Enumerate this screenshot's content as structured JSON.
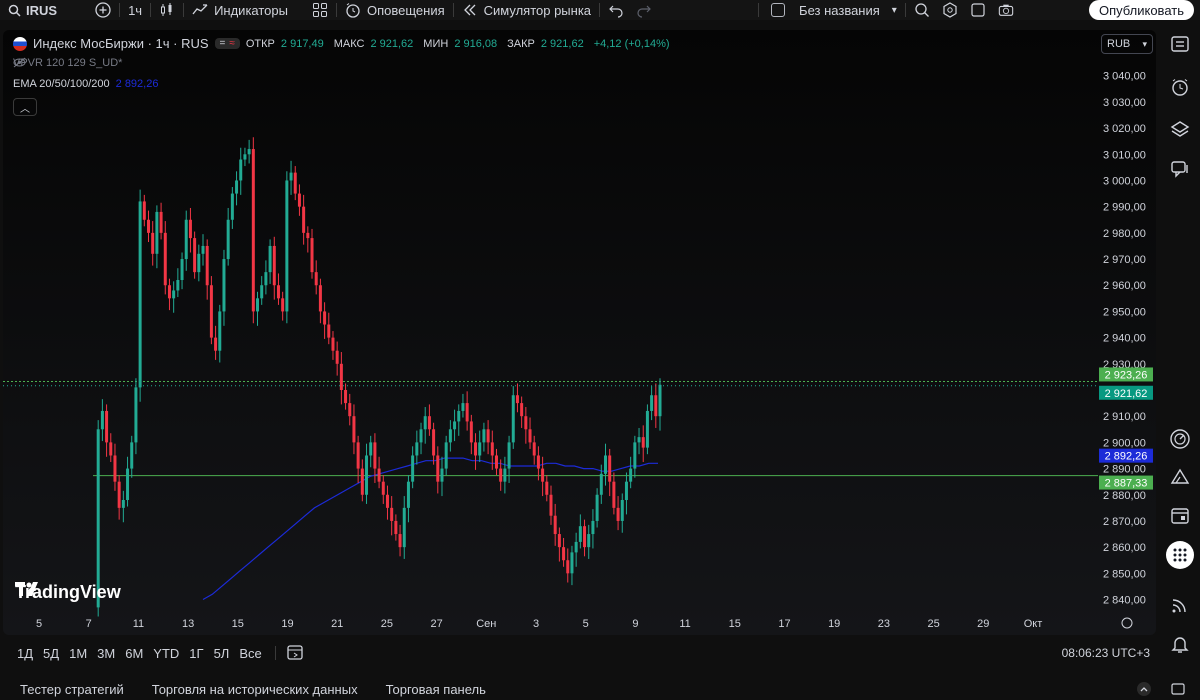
{
  "toolbar": {
    "symbol": "IRUS",
    "interval": "1ч",
    "indicators_label": "Индикаторы",
    "alerts_label": "Оповещения",
    "replay_label": "Симулятор рынка",
    "layout_name": "Без названия",
    "publish_label": "Опубликовать"
  },
  "legend": {
    "symbol_title": "Индекс МосБиржи · 1ч · RUS",
    "pill_equal": "=",
    "pill_wave": "≈",
    "open_label": "ОТКР",
    "open_value": "2 917,49",
    "high_label": "МАКС",
    "high_value": "2 921,62",
    "low_label": "МИН",
    "low_value": "2 916,08",
    "close_label": "ЗАКР",
    "close_value": "2 921,62",
    "change": "+4,12 (+0,14%)",
    "indicator1": "VPVR 120 129 S_UD*",
    "indicator2_name": "EMA 20/50/100/200",
    "indicator2_value": "2 892,26"
  },
  "currency": "RUB",
  "price_axis": {
    "ticks": [
      "3 040,00",
      "3 030,00",
      "3 020,00",
      "3 010,00",
      "3 000,00",
      "2 990,00",
      "2 980,00",
      "2 970,00",
      "2 960,00",
      "2 950,00",
      "2 940,00",
      "2 930,00",
      "2 920,00",
      "2 910,00",
      "2 900,00",
      "2 890,00",
      "2 880,00",
      "2 870,00",
      "2 860,00",
      "2 850,00",
      "2 840,00"
    ],
    "tags": [
      {
        "label": "2 923,26",
        "color": "#4caf50"
      },
      {
        "label": "2 921,62",
        "color": "#089981"
      },
      {
        "label": "2 892,26",
        "color": "#1c2bd8"
      },
      {
        "label": "2 887,33",
        "color": "#4caf50"
      }
    ]
  },
  "time_axis": [
    "5",
    "7",
    "11",
    "13",
    "15",
    "19",
    "21",
    "25",
    "27",
    "Сен",
    "3",
    "5",
    "9",
    "11",
    "15",
    "17",
    "19",
    "23",
    "25",
    "29",
    "Окт"
  ],
  "horizontal_lines": [
    {
      "price": 2923.26,
      "color": "#4caf50"
    },
    {
      "price": 2887.33,
      "color": "#4caf50"
    }
  ],
  "chart_data": {
    "type": "candlestick",
    "symbol": "Индекс МосБиржи",
    "interval": "1ч",
    "ylim": [
      2836,
      3046
    ],
    "closes": [
      2837,
      2905,
      2912,
      2900,
      2895,
      2885,
      2875,
      2878,
      2890,
      2900,
      2921,
      2992,
      2985,
      2980,
      2972,
      2988,
      2980,
      2960,
      2955,
      2958,
      2962,
      2970,
      2985,
      2978,
      2965,
      2972,
      2975,
      2960,
      2940,
      2935,
      2950,
      2970,
      2985,
      2995,
      3000,
      3008,
      3010,
      3012,
      2950,
      2955,
      2960,
      2965,
      2975,
      2960,
      2955,
      2950,
      3000,
      3003,
      2995,
      2990,
      2980,
      2978,
      2965,
      2960,
      2950,
      2945,
      2940,
      2935,
      2930,
      2920,
      2915,
      2910,
      2900,
      2890,
      2880,
      2895,
      2900,
      2890,
      2885,
      2880,
      2875,
      2870,
      2865,
      2860,
      2875,
      2885,
      2895,
      2900,
      2905,
      2910,
      2905,
      2895,
      2885,
      2890,
      2900,
      2905,
      2908,
      2912,
      2915,
      2908,
      2900,
      2895,
      2900,
      2905,
      2900,
      2895,
      2890,
      2885,
      2890,
      2900,
      2918,
      2915,
      2910,
      2905,
      2900,
      2895,
      2890,
      2885,
      2880,
      2872,
      2865,
      2860,
      2855,
      2850,
      2858,
      2862,
      2868,
      2860,
      2865,
      2870,
      2880,
      2888,
      2895,
      2885,
      2875,
      2870,
      2878,
      2885,
      2890,
      2900,
      2902,
      2898,
      2912,
      2918,
      2910,
      2922
    ],
    "ema": [
      2840,
      2842,
      2845,
      2848,
      2851,
      2854,
      2857,
      2860,
      2863,
      2866,
      2869,
      2872,
      2875,
      2877,
      2879,
      2881,
      2883,
      2885,
      2887,
      2888,
      2889,
      2890,
      2891,
      2892,
      2893,
      2893,
      2894,
      2894,
      2894,
      2893,
      2893,
      2892,
      2892,
      2891,
      2891,
      2891,
      2891,
      2892,
      2892,
      2891,
      2891,
      2890,
      2890,
      2889,
      2889,
      2890,
      2891,
      2891,
      2892,
      2892
    ],
    "hlines": [
      2923.26,
      2887.33
    ],
    "last_price": 2921.62
  },
  "range_bar": [
    "1Д",
    "5Д",
    "1М",
    "3М",
    "6М",
    "YTD",
    "1Г",
    "5Л",
    "Все"
  ],
  "clock": "08:06:23 UTC+3",
  "bottom_tabs": [
    "Тестер стратегий",
    "Торговля на исторических данных",
    "Торговая панель"
  ],
  "logo_text": "TradingView",
  "colors": {
    "up": "#22ab94",
    "down": "#f23645",
    "ema": "#1c2bd8",
    "hline": "#4caf50"
  }
}
